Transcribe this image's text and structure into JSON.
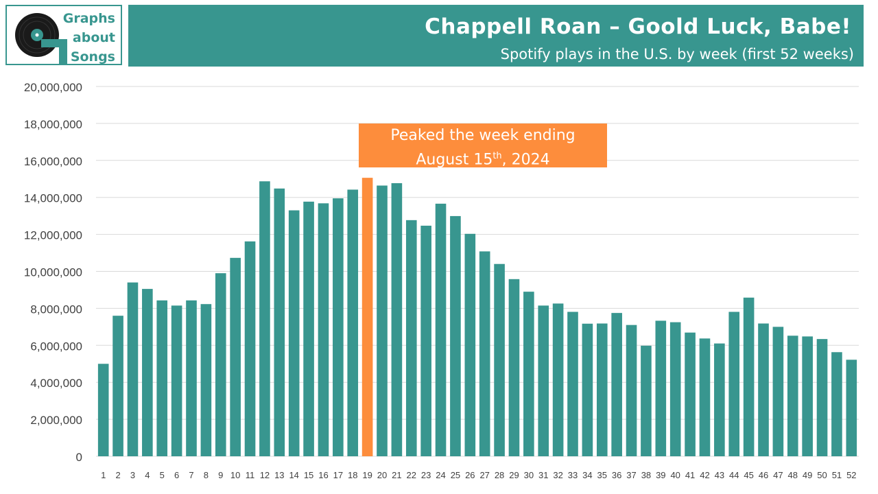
{
  "logo": {
    "line1": "Graphs",
    "line2": "about",
    "line3": "Songs",
    "colors": {
      "teal": "#38968f",
      "dark": "#1a1a1a"
    }
  },
  "header": {
    "title": "Chappell Roan – Goold Luck, Babe!",
    "subtitle": "Spotify plays in the U.S. by week (first 52 weeks)"
  },
  "annotation": {
    "line1": "Peaked the week ending",
    "line2_pre": "August 15",
    "line2_sup": "th",
    "line2_post": ", 2024",
    "color": "#fd8d3c"
  },
  "chart_data": {
    "type": "bar",
    "title": "Chappell Roan – Goold Luck, Babe!",
    "subtitle": "Spotify plays in the U.S. by week (first 52 weeks)",
    "xlabel": "",
    "ylabel": "",
    "ylim": [
      0,
      20000000
    ],
    "yticks": [
      0,
      2000000,
      4000000,
      6000000,
      8000000,
      10000000,
      12000000,
      14000000,
      16000000,
      18000000,
      20000000
    ],
    "grid": true,
    "bar_color": "#38968f",
    "highlight_color": "#fd8d3c",
    "highlight_index": 18,
    "categories": [
      "1",
      "2",
      "3",
      "4",
      "5",
      "6",
      "7",
      "8",
      "9",
      "10",
      "11",
      "12",
      "13",
      "14",
      "15",
      "16",
      "17",
      "18",
      "19",
      "20",
      "21",
      "22",
      "23",
      "24",
      "25",
      "26",
      "27",
      "28",
      "29",
      "30",
      "31",
      "32",
      "33",
      "34",
      "35",
      "36",
      "37",
      "38",
      "39",
      "40",
      "41",
      "42",
      "43",
      "44",
      "45",
      "46",
      "47",
      "48",
      "49",
      "50",
      "51",
      "52"
    ],
    "values": [
      5000000,
      7600000,
      9400000,
      9050000,
      8430000,
      8150000,
      8430000,
      8230000,
      9900000,
      10730000,
      11620000,
      14870000,
      14480000,
      13300000,
      13770000,
      13680000,
      13950000,
      14420000,
      15060000,
      14640000,
      14770000,
      12770000,
      12470000,
      13660000,
      12990000,
      12030000,
      11080000,
      10400000,
      9580000,
      8900000,
      8150000,
      8260000,
      7810000,
      7170000,
      7180000,
      7750000,
      7100000,
      5980000,
      7330000,
      7250000,
      6690000,
      6370000,
      6100000,
      7810000,
      8580000,
      7180000,
      7000000,
      6520000,
      6480000,
      6340000,
      5630000,
      5220000
    ]
  }
}
